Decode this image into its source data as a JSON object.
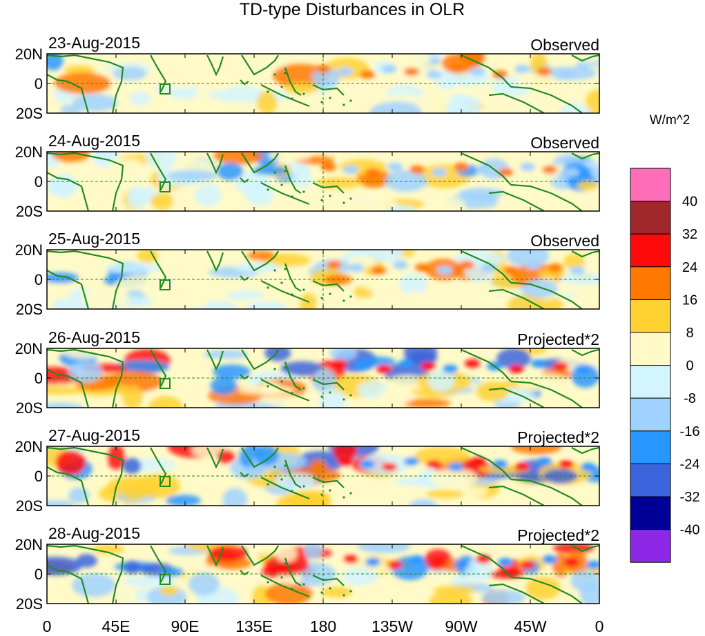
{
  "title": "TD-type Disturbances in OLR",
  "units": "W/m^2",
  "lat_labels": [
    "20N",
    "0",
    "20S"
  ],
  "lon_labels": [
    "0",
    "45E",
    "90E",
    "135E",
    "180",
    "135W",
    "90W",
    "45W",
    "0"
  ],
  "panels": [
    {
      "date": "23-Aug-2015",
      "type": "Observed"
    },
    {
      "date": "24-Aug-2015",
      "type": "Observed"
    },
    {
      "date": "25-Aug-2015",
      "type": "Observed"
    },
    {
      "date": "26-Aug-2015",
      "type": "Projected*2"
    },
    {
      "date": "27-Aug-2015",
      "type": "Projected*2"
    },
    {
      "date": "28-Aug-2015",
      "type": "Projected*2"
    }
  ],
  "colorbar": {
    "levels": [
      "40",
      "32",
      "24",
      "16",
      "8",
      "0",
      "-8",
      "-16",
      "-24",
      "-32",
      "-40"
    ],
    "colors": [
      "#ff6eb9",
      "#a0282d",
      "#ff0a0a",
      "#ff7800",
      "#ffd232",
      "#fffac8",
      "#d2f5ff",
      "#a0d2ff",
      "#2896ff",
      "#3c64dc",
      "#000096",
      "#8c28e6"
    ]
  },
  "land_color": "#228b22"
}
